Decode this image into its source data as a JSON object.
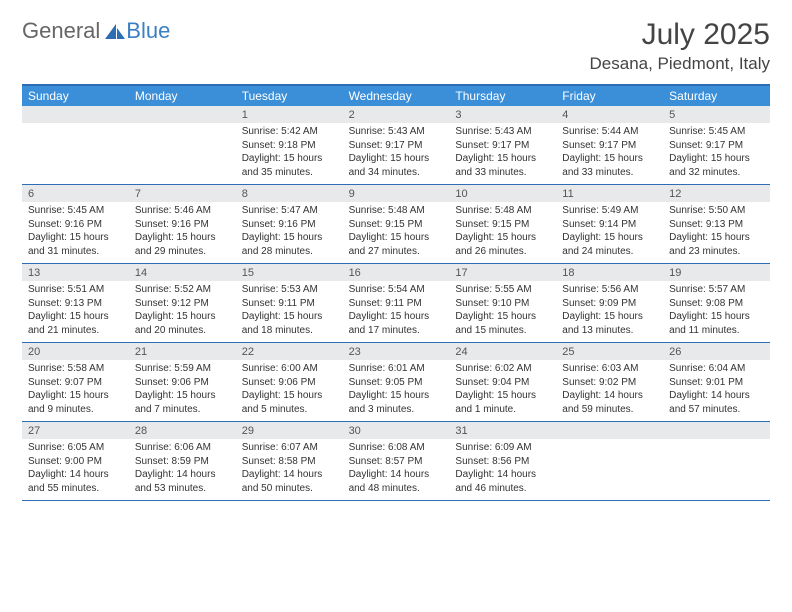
{
  "brand": {
    "word1": "General",
    "word2": "Blue",
    "color1": "#666666",
    "color2": "#3b7fc4"
  },
  "title": "July 2025",
  "location": "Desana, Piedmont, Italy",
  "colors": {
    "header_bg": "#3b8ed8",
    "header_border": "#2d6db3",
    "daynum_bg": "#e8e9ea",
    "text": "#333333"
  },
  "weekdays": [
    "Sunday",
    "Monday",
    "Tuesday",
    "Wednesday",
    "Thursday",
    "Friday",
    "Saturday"
  ],
  "weeks": [
    [
      null,
      null,
      {
        "n": "1",
        "sunrise": "5:42 AM",
        "sunset": "9:18 PM",
        "daylight": "15 hours and 35 minutes."
      },
      {
        "n": "2",
        "sunrise": "5:43 AM",
        "sunset": "9:17 PM",
        "daylight": "15 hours and 34 minutes."
      },
      {
        "n": "3",
        "sunrise": "5:43 AM",
        "sunset": "9:17 PM",
        "daylight": "15 hours and 33 minutes."
      },
      {
        "n": "4",
        "sunrise": "5:44 AM",
        "sunset": "9:17 PM",
        "daylight": "15 hours and 33 minutes."
      },
      {
        "n": "5",
        "sunrise": "5:45 AM",
        "sunset": "9:17 PM",
        "daylight": "15 hours and 32 minutes."
      }
    ],
    [
      {
        "n": "6",
        "sunrise": "5:45 AM",
        "sunset": "9:16 PM",
        "daylight": "15 hours and 31 minutes."
      },
      {
        "n": "7",
        "sunrise": "5:46 AM",
        "sunset": "9:16 PM",
        "daylight": "15 hours and 29 minutes."
      },
      {
        "n": "8",
        "sunrise": "5:47 AM",
        "sunset": "9:16 PM",
        "daylight": "15 hours and 28 minutes."
      },
      {
        "n": "9",
        "sunrise": "5:48 AM",
        "sunset": "9:15 PM",
        "daylight": "15 hours and 27 minutes."
      },
      {
        "n": "10",
        "sunrise": "5:48 AM",
        "sunset": "9:15 PM",
        "daylight": "15 hours and 26 minutes."
      },
      {
        "n": "11",
        "sunrise": "5:49 AM",
        "sunset": "9:14 PM",
        "daylight": "15 hours and 24 minutes."
      },
      {
        "n": "12",
        "sunrise": "5:50 AM",
        "sunset": "9:13 PM",
        "daylight": "15 hours and 23 minutes."
      }
    ],
    [
      {
        "n": "13",
        "sunrise": "5:51 AM",
        "sunset": "9:13 PM",
        "daylight": "15 hours and 21 minutes."
      },
      {
        "n": "14",
        "sunrise": "5:52 AM",
        "sunset": "9:12 PM",
        "daylight": "15 hours and 20 minutes."
      },
      {
        "n": "15",
        "sunrise": "5:53 AM",
        "sunset": "9:11 PM",
        "daylight": "15 hours and 18 minutes."
      },
      {
        "n": "16",
        "sunrise": "5:54 AM",
        "sunset": "9:11 PM",
        "daylight": "15 hours and 17 minutes."
      },
      {
        "n": "17",
        "sunrise": "5:55 AM",
        "sunset": "9:10 PM",
        "daylight": "15 hours and 15 minutes."
      },
      {
        "n": "18",
        "sunrise": "5:56 AM",
        "sunset": "9:09 PM",
        "daylight": "15 hours and 13 minutes."
      },
      {
        "n": "19",
        "sunrise": "5:57 AM",
        "sunset": "9:08 PM",
        "daylight": "15 hours and 11 minutes."
      }
    ],
    [
      {
        "n": "20",
        "sunrise": "5:58 AM",
        "sunset": "9:07 PM",
        "daylight": "15 hours and 9 minutes."
      },
      {
        "n": "21",
        "sunrise": "5:59 AM",
        "sunset": "9:06 PM",
        "daylight": "15 hours and 7 minutes."
      },
      {
        "n": "22",
        "sunrise": "6:00 AM",
        "sunset": "9:06 PM",
        "daylight": "15 hours and 5 minutes."
      },
      {
        "n": "23",
        "sunrise": "6:01 AM",
        "sunset": "9:05 PM",
        "daylight": "15 hours and 3 minutes."
      },
      {
        "n": "24",
        "sunrise": "6:02 AM",
        "sunset": "9:04 PM",
        "daylight": "15 hours and 1 minute."
      },
      {
        "n": "25",
        "sunrise": "6:03 AM",
        "sunset": "9:02 PM",
        "daylight": "14 hours and 59 minutes."
      },
      {
        "n": "26",
        "sunrise": "6:04 AM",
        "sunset": "9:01 PM",
        "daylight": "14 hours and 57 minutes."
      }
    ],
    [
      {
        "n": "27",
        "sunrise": "6:05 AM",
        "sunset": "9:00 PM",
        "daylight": "14 hours and 55 minutes."
      },
      {
        "n": "28",
        "sunrise": "6:06 AM",
        "sunset": "8:59 PM",
        "daylight": "14 hours and 53 minutes."
      },
      {
        "n": "29",
        "sunrise": "6:07 AM",
        "sunset": "8:58 PM",
        "daylight": "14 hours and 50 minutes."
      },
      {
        "n": "30",
        "sunrise": "6:08 AM",
        "sunset": "8:57 PM",
        "daylight": "14 hours and 48 minutes."
      },
      {
        "n": "31",
        "sunrise": "6:09 AM",
        "sunset": "8:56 PM",
        "daylight": "14 hours and 46 minutes."
      },
      null,
      null
    ]
  ],
  "labels": {
    "sunrise": "Sunrise:",
    "sunset": "Sunset:",
    "daylight": "Daylight:"
  }
}
